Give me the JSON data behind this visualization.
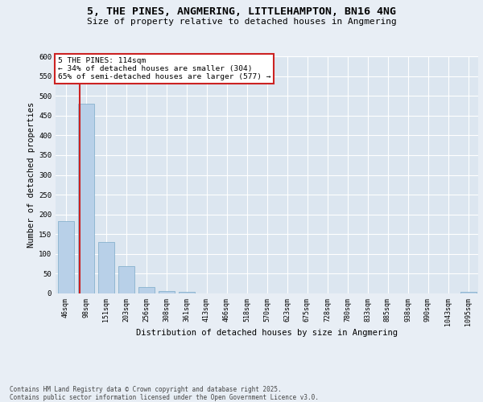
{
  "title1": "5, THE PINES, ANGMERING, LITTLEHAMPTON, BN16 4NG",
  "title2": "Size of property relative to detached houses in Angmering",
  "xlabel": "Distribution of detached houses by size in Angmering",
  "ylabel": "Number of detached properties",
  "bar_color": "#b8d0e8",
  "bar_edge_color": "#7aaac8",
  "vline_color": "#cc2222",
  "categories": [
    "46sqm",
    "98sqm",
    "151sqm",
    "203sqm",
    "256sqm",
    "308sqm",
    "361sqm",
    "413sqm",
    "466sqm",
    "518sqm",
    "570sqm",
    "623sqm",
    "675sqm",
    "728sqm",
    "780sqm",
    "833sqm",
    "885sqm",
    "938sqm",
    "990sqm",
    "1043sqm",
    "1095sqm"
  ],
  "values": [
    183,
    480,
    130,
    70,
    17,
    7,
    5,
    0,
    0,
    0,
    0,
    0,
    0,
    0,
    0,
    0,
    0,
    0,
    0,
    0,
    4
  ],
  "ylim_max": 600,
  "yticks": [
    0,
    50,
    100,
    150,
    200,
    250,
    300,
    350,
    400,
    450,
    500,
    550,
    600
  ],
  "annotation_line1": "5 THE PINES: 114sqm",
  "annotation_line2": "← 34% of detached houses are smaller (304)",
  "annotation_line3": "65% of semi-detached houses are larger (577) →",
  "vline_bar_index": 1,
  "background_color": "#e8eef5",
  "plot_bg_color": "#dce6f0",
  "grid_color": "#ffffff",
  "footer_text": "Contains HM Land Registry data © Crown copyright and database right 2025.\nContains public sector information licensed under the Open Government Licence v3.0."
}
